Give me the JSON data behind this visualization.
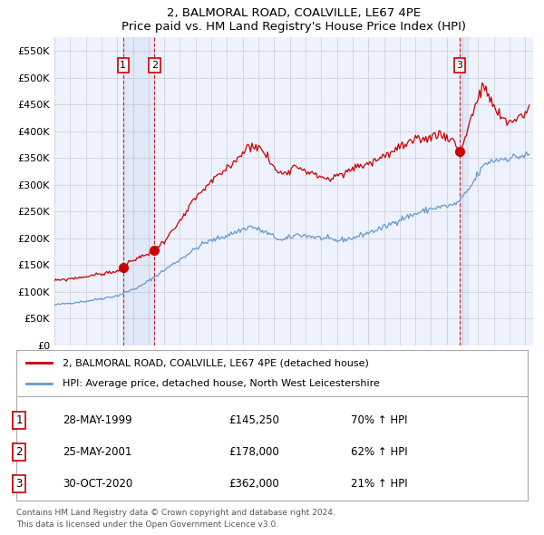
{
  "title": "2, BALMORAL ROAD, COALVILLE, LE67 4PE",
  "subtitle": "Price paid vs. HM Land Registry's House Price Index (HPI)",
  "ylim": [
    0,
    575000
  ],
  "yticks": [
    0,
    50000,
    100000,
    150000,
    200000,
    250000,
    300000,
    350000,
    400000,
    450000,
    500000,
    550000
  ],
  "ytick_labels": [
    "£0",
    "£50K",
    "£100K",
    "£150K",
    "£200K",
    "£250K",
    "£300K",
    "£350K",
    "£400K",
    "£450K",
    "£500K",
    "£550K"
  ],
  "red_line_color": "#cc0000",
  "blue_line_color": "#6699cc",
  "grid_color": "#cccccc",
  "bg_color": "#ffffff",
  "plot_bg_color": "#eef2ff",
  "sale1_x": 1999.38,
  "sale1_price": 145250,
  "sale1_label": "1",
  "sale1_date": "28-MAY-1999",
  "sale1_pct": "70% ↑ HPI",
  "sale2_x": 2001.38,
  "sale2_price": 178000,
  "sale2_label": "2",
  "sale2_date": "25-MAY-2001",
  "sale2_pct": "62% ↑ HPI",
  "sale3_x": 2020.83,
  "sale3_price": 362000,
  "sale3_label": "3",
  "sale3_date": "30-OCT-2020",
  "sale3_pct": "21% ↑ HPI",
  "legend1_text": "2, BALMORAL ROAD, COALVILLE, LE67 4PE (detached house)",
  "legend2_text": "HPI: Average price, detached house, North West Leicestershire",
  "footer1": "Contains HM Land Registry data © Crown copyright and database right 2024.",
  "footer2": "This data is licensed under the Open Government Licence v3.0.",
  "xstart": 1995.0,
  "xend": 2025.5
}
